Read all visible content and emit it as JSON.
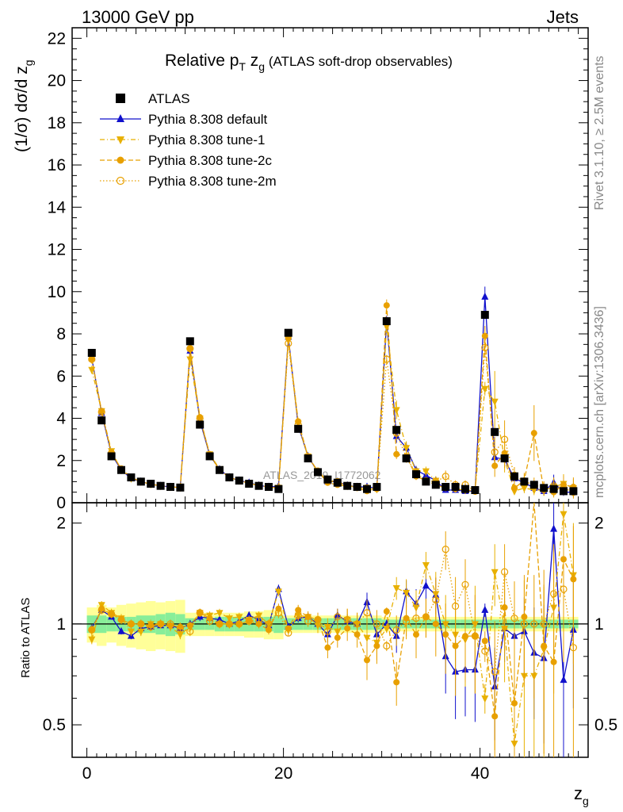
{
  "header": {
    "left": "13000 GeV pp",
    "right": "Jets"
  },
  "side_labels": {
    "rivet": "Rivet 3.1.10, ≥ 2.5M events",
    "mcplots": "mcplots.cern.ch [arXiv:1306.3436]"
  },
  "chart_data": {
    "type": "scatter",
    "title_main": "Relative p",
    "title_sub_T": "T",
    "title_after": " z",
    "title_sub_g": "g",
    "title_paren": " (ATLAS soft-drop observables)",
    "ylabel_main": "(1/σ) dσ/d z",
    "ylabel_sub": "g",
    "xlabel_main": "z",
    "xlabel_sub": "g",
    "watermark": "ATLAS_2019_I1772062",
    "ratio_ylabel": "Ratio to ATLAS",
    "xlim": [
      -1.5,
      51
    ],
    "ylim_main": [
      0,
      22.5
    ],
    "ylim_ratio": [
      0.4,
      2.3
    ],
    "x_ticks": [
      0,
      20,
      40
    ],
    "y_ticks_main": [
      0,
      2,
      4,
      6,
      8,
      10,
      12,
      14,
      16,
      18,
      20,
      22
    ],
    "y_ticks_ratio": [
      0.5,
      1,
      2
    ],
    "x": [
      0.5,
      1.5,
      2.5,
      3.5,
      4.5,
      5.5,
      6.5,
      7.5,
      8.5,
      9.5,
      10.5,
      11.5,
      12.5,
      13.5,
      14.5,
      15.5,
      16.5,
      17.5,
      18.5,
      19.5,
      20.5,
      21.5,
      22.5,
      23.5,
      24.5,
      25.5,
      26.5,
      27.5,
      28.5,
      29.5,
      30.5,
      31.5,
      32.5,
      33.5,
      34.5,
      35.5,
      36.5,
      37.5,
      38.5,
      39.5,
      40.5,
      41.5,
      42.5,
      43.5,
      44.5,
      45.5,
      46.5,
      47.5,
      48.5,
      49.5
    ],
    "series": [
      {
        "name": "ATLAS",
        "color": "#000000",
        "marker": "square",
        "values": [
          7.1,
          3.9,
          2.2,
          1.55,
          1.2,
          1.0,
          0.9,
          0.8,
          0.75,
          0.72,
          7.65,
          3.7,
          2.2,
          1.55,
          1.2,
          1.05,
          0.9,
          0.8,
          0.75,
          0.65,
          8.05,
          3.5,
          2.1,
          1.45,
          1.1,
          0.95,
          0.8,
          0.75,
          0.65,
          0.75,
          8.6,
          3.45,
          2.1,
          1.35,
          1.0,
          0.85,
          0.75,
          0.75,
          0.65,
          0.6,
          8.9,
          3.35,
          2.1,
          1.25,
          1.0,
          0.85,
          0.7,
          0.65,
          0.55,
          0.55
        ],
        "ratio_band_inner": [
          0.06,
          0.06,
          0.05,
          0.05,
          0.05,
          0.06,
          0.06,
          0.07,
          0.08,
          0.07,
          0.04,
          0.04,
          0.04,
          0.05,
          0.05,
          0.05,
          0.05,
          0.05,
          0.05,
          0.06,
          0.04,
          0.04,
          0.04,
          0.04,
          0.04,
          0.04,
          0.04,
          0.04,
          0.04,
          0.04,
          0.03,
          0.03,
          0.03,
          0.03,
          0.03,
          0.03,
          0.03,
          0.03,
          0.03,
          0.03,
          0.03,
          0.03,
          0.03,
          0.03,
          0.03,
          0.03,
          0.03,
          0.03,
          0.03,
          0.03
        ],
        "ratio_band_outer": [
          0.12,
          0.14,
          0.12,
          0.14,
          0.15,
          0.16,
          0.17,
          0.16,
          0.17,
          0.18,
          0.08,
          0.08,
          0.08,
          0.08,
          0.08,
          0.08,
          0.09,
          0.09,
          0.1,
          0.1,
          0.06,
          0.06,
          0.06,
          0.06,
          0.06,
          0.06,
          0.06,
          0.06,
          0.06,
          0.06,
          0.05,
          0.05,
          0.05,
          0.05,
          0.05,
          0.05,
          0.05,
          0.05,
          0.05,
          0.05,
          0.05,
          0.05,
          0.05,
          0.05,
          0.05,
          0.05,
          0.05,
          0.05,
          0.05,
          0.05
        ]
      },
      {
        "name": "Pythia 8.308 default",
        "color": "#1010cc",
        "marker": "triangle-up",
        "line": "solid",
        "values": [
          6.85,
          4.25,
          2.3,
          1.55,
          1.15,
          1.0,
          0.88,
          0.8,
          0.75,
          0.72,
          7.2,
          3.9,
          2.25,
          1.58,
          1.2,
          1.05,
          0.95,
          0.82,
          0.75,
          0.78,
          7.85,
          3.65,
          2.2,
          1.45,
          1.0,
          1.0,
          0.82,
          0.75,
          0.75,
          0.7,
          8.6,
          3.15,
          2.6,
          1.55,
          1.3,
          1.05,
          0.6,
          0.6,
          0.55,
          0.55,
          9.75,
          2.15,
          2.05,
          1.15,
          0.95,
          0.7,
          0.55,
          0.95,
          0.5,
          0.5
        ],
        "ratio": [
          0.97,
          1.1,
          1.05,
          0.95,
          0.92,
          0.97,
          0.98,
          0.99,
          0.99,
          0.97,
          1.0,
          1.05,
          1.04,
          1.03,
          1.0,
          1.02,
          1.06,
          1.03,
          0.99,
          1.27,
          0.98,
          1.04,
          1.05,
          1.0,
          0.93,
          1.06,
          1.02,
          1.0,
          1.16,
          0.93,
          1.0,
          0.92,
          1.25,
          1.15,
          1.3,
          1.22,
          0.8,
          0.72,
          0.73,
          0.73,
          1.1,
          0.65,
          0.97,
          0.92,
          0.95,
          0.82,
          0.79,
          1.92,
          0.68,
          0.96
        ],
        "ratio_err": [
          0.02,
          0.03,
          0.02,
          0.02,
          0.02,
          0.02,
          0.02,
          0.02,
          0.02,
          0.02,
          0.02,
          0.03,
          0.02,
          0.02,
          0.02,
          0.02,
          0.02,
          0.03,
          0.03,
          0.04,
          0.02,
          0.03,
          0.03,
          0.04,
          0.05,
          0.05,
          0.05,
          0.06,
          0.08,
          0.08,
          0.03,
          0.1,
          0.1,
          0.12,
          0.12,
          0.15,
          0.18,
          0.2,
          0.2,
          0.22,
          0.05,
          0.2,
          0.2,
          0.25,
          0.25,
          0.3,
          0.35,
          0.4,
          0.35,
          0.4
        ]
      },
      {
        "name": "Pythia 8.308 tune-1",
        "color": "#e8b000",
        "marker": "triangle-down",
        "line": "dashdot",
        "values": [
          6.3,
          4.35,
          2.45,
          1.55,
          1.15,
          1.0,
          0.88,
          0.8,
          0.75,
          0.72,
          6.8,
          4.0,
          2.3,
          1.6,
          1.2,
          1.05,
          0.93,
          0.82,
          0.75,
          0.72,
          7.7,
          3.75,
          2.2,
          1.45,
          1.05,
          0.95,
          0.8,
          0.75,
          0.65,
          0.65,
          8.35,
          4.4,
          2.6,
          1.5,
          1.5,
          1.05,
          0.75,
          0.7,
          0.6,
          0.6,
          5.4,
          4.8,
          2.05,
          0.55,
          0.7,
          0.6,
          0.6,
          0.75,
          0.9,
          0.7
        ],
        "ratio": [
          0.9,
          1.14,
          1.08,
          1.04,
          0.95,
          0.95,
          1.0,
          1.0,
          0.98,
          0.93,
          0.98,
          1.08,
          1.06,
          1.08,
          1.04,
          1.05,
          1.03,
          1.06,
          1.0,
          1.25,
          0.96,
          1.06,
          1.05,
          0.99,
          0.98,
          0.95,
          1.03,
          1.0,
          0.91,
          0.88,
          0.97,
          1.28,
          1.24,
          1.12,
          1.5,
          1.23,
          1.0,
          0.93,
          0.9,
          1.0,
          0.6,
          1.43,
          0.97,
          0.44,
          0.7,
          0.7,
          0.84,
          1.12,
          2.13,
          1.4
        ],
        "ratio_err": [
          0.03,
          0.03,
          0.03,
          0.03,
          0.03,
          0.03,
          0.03,
          0.03,
          0.03,
          0.03,
          0.03,
          0.03,
          0.03,
          0.03,
          0.03,
          0.03,
          0.03,
          0.03,
          0.03,
          0.04,
          0.02,
          0.04,
          0.04,
          0.05,
          0.06,
          0.06,
          0.08,
          0.08,
          0.1,
          0.1,
          0.03,
          0.1,
          0.12,
          0.14,
          0.14,
          0.2,
          0.22,
          0.25,
          0.25,
          0.3,
          0.06,
          0.3,
          0.3,
          0.3,
          0.35,
          0.4,
          0.45,
          0.5,
          0.5,
          0.6
        ]
      },
      {
        "name": "Pythia 8.308 tune-2c",
        "color": "#e8a000",
        "marker": "circle",
        "line": "dashed",
        "values": [
          6.8,
          4.35,
          2.35,
          1.6,
          1.2,
          1.0,
          0.88,
          0.8,
          0.75,
          0.72,
          7.3,
          4.05,
          2.3,
          1.55,
          1.2,
          1.05,
          0.92,
          0.82,
          0.72,
          0.72,
          7.8,
          3.85,
          2.2,
          1.5,
          0.95,
          0.85,
          0.78,
          0.7,
          0.55,
          0.65,
          9.35,
          2.3,
          2.2,
          1.25,
          1.05,
          0.85,
          0.7,
          0.65,
          0.6,
          0.55,
          7.9,
          1.75,
          2.35,
          0.7,
          1.05,
          3.3,
          0.6,
          0.5,
          0.85,
          0.75
        ],
        "ratio": [
          0.96,
          1.11,
          1.07,
          1.03,
          1.0,
          1.0,
          0.99,
          1.0,
          0.99,
          0.98,
          0.99,
          1.08,
          1.04,
          1.0,
          1.0,
          1.0,
          1.02,
          1.0,
          0.96,
          1.11,
          0.97,
          1.1,
          1.05,
          1.03,
          0.85,
          0.91,
          0.97,
          0.93,
          0.78,
          0.86,
          1.09,
          0.67,
          1.04,
          0.93,
          1.05,
          1.0,
          0.93,
          0.86,
          0.92,
          0.92,
          0.89,
          0.53,
          1.12,
          0.58,
          1.05,
          3.88,
          0.86,
          0.77,
          1.56,
          1.36
        ],
        "ratio_err": [
          0.03,
          0.03,
          0.03,
          0.03,
          0.03,
          0.03,
          0.03,
          0.03,
          0.03,
          0.03,
          0.03,
          0.03,
          0.03,
          0.03,
          0.03,
          0.03,
          0.03,
          0.03,
          0.03,
          0.04,
          0.02,
          0.04,
          0.04,
          0.05,
          0.06,
          0.06,
          0.08,
          0.08,
          0.1,
          0.1,
          0.03,
          0.1,
          0.12,
          0.14,
          0.14,
          0.2,
          0.22,
          0.25,
          0.25,
          0.3,
          0.06,
          0.3,
          0.3,
          0.3,
          0.35,
          0.4,
          0.45,
          0.5,
          0.5,
          0.6
        ]
      },
      {
        "name": "Pythia 8.308 tune-2m",
        "color": "#e8a000",
        "marker": "circle-open",
        "line": "dotted",
        "values": [
          6.8,
          4.3,
          2.35,
          1.6,
          1.2,
          1.0,
          0.88,
          0.8,
          0.75,
          0.72,
          7.3,
          4.0,
          2.25,
          1.55,
          1.2,
          1.05,
          0.92,
          0.82,
          0.75,
          0.7,
          7.55,
          3.7,
          2.15,
          1.5,
          1.05,
          1.0,
          0.82,
          0.75,
          0.7,
          0.75,
          6.8,
          3.3,
          2.15,
          1.4,
          1.05,
          1.0,
          1.25,
          0.85,
          0.85,
          0.55,
          7.35,
          2.4,
          3.0,
          1.3,
          1.0,
          0.85,
          0.7,
          0.8,
          0.7,
          0.5
        ],
        "ratio": [
          0.96,
          1.1,
          1.07,
          1.03,
          1.0,
          1.0,
          0.98,
          1.0,
          1.0,
          0.97,
          0.95,
          1.08,
          1.02,
          1.0,
          1.0,
          1.0,
          1.02,
          1.03,
          1.0,
          1.08,
          0.94,
          1.06,
          1.02,
          1.03,
          0.95,
          1.05,
          1.03,
          1.0,
          1.08,
          1.0,
          0.86,
          0.96,
          1.02,
          1.04,
          1.05,
          1.18,
          1.67,
          1.13,
          1.31,
          0.92,
          0.83,
          0.72,
          1.43,
          1.04,
          1.0,
          1.0,
          1.0,
          1.23,
          1.27,
          0.85
        ],
        "ratio_err": [
          0.03,
          0.03,
          0.03,
          0.03,
          0.03,
          0.03,
          0.03,
          0.03,
          0.03,
          0.03,
          0.03,
          0.03,
          0.03,
          0.03,
          0.03,
          0.03,
          0.03,
          0.03,
          0.03,
          0.04,
          0.02,
          0.04,
          0.04,
          0.05,
          0.06,
          0.06,
          0.08,
          0.08,
          0.1,
          0.1,
          0.03,
          0.1,
          0.12,
          0.14,
          0.14,
          0.2,
          0.22,
          0.25,
          0.25,
          0.3,
          0.06,
          0.3,
          0.3,
          0.3,
          0.35,
          0.4,
          0.45,
          0.5,
          0.5,
          0.6
        ]
      }
    ]
  }
}
